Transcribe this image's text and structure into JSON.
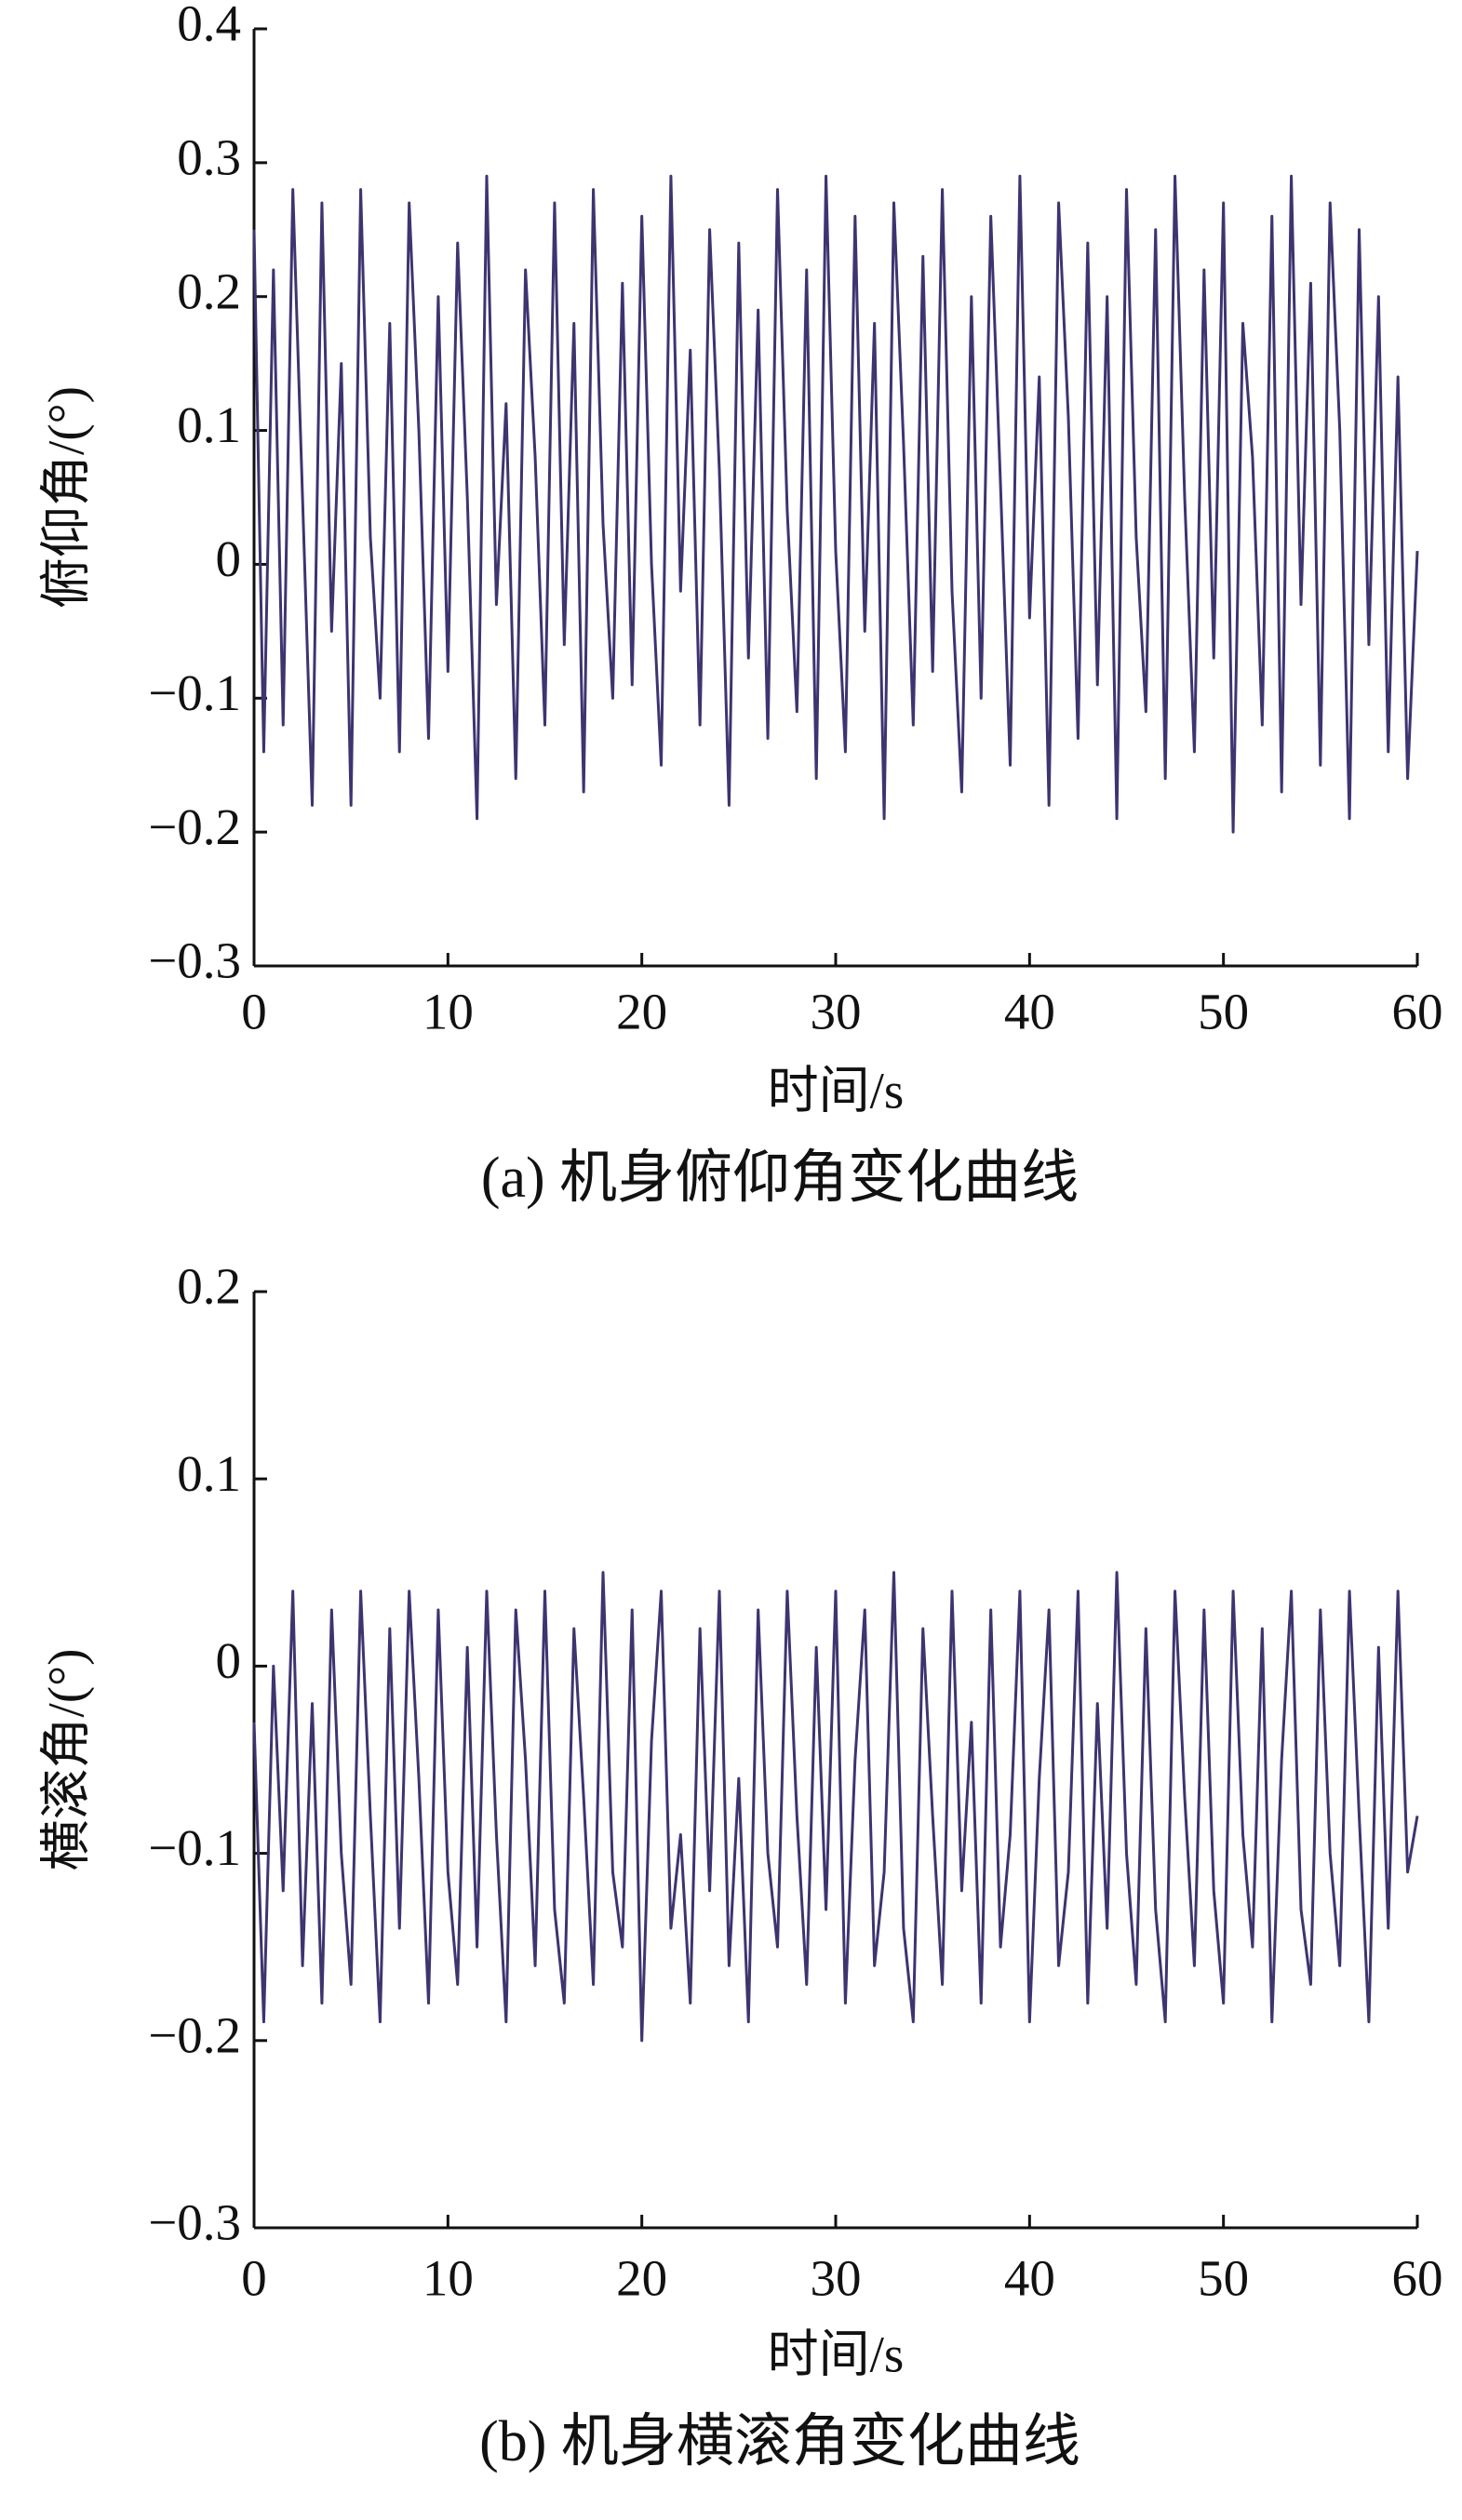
{
  "chart_data": [
    {
      "type": "line",
      "caption": "(a) 机身俯仰角变化曲线",
      "xlabel": "时间/s",
      "ylabel": "俯仰角/(°)",
      "xlim": [
        0,
        60
      ],
      "xticks": [
        0,
        10,
        20,
        30,
        40,
        50,
        60
      ],
      "ylim": [
        -0.3,
        0.4
      ],
      "yticks": [
        {
          "value": -0.3,
          "label": "−0.3"
        },
        {
          "value": -0.2,
          "label": "−0.2"
        },
        {
          "value": -0.1,
          "label": "−0.1"
        },
        0,
        0.1,
        0.2,
        0.3,
        0.4
      ],
      "x": [
        0,
        0.5,
        1,
        1.5,
        2,
        2.5,
        3,
        3.5,
        4,
        4.5,
        5,
        5.5,
        6,
        6.5,
        7,
        7.5,
        8,
        8.5,
        9,
        9.5,
        10,
        10.5,
        11,
        11.5,
        12,
        12.5,
        13,
        13.5,
        14,
        14.5,
        15,
        15.5,
        16,
        16.5,
        17,
        17.5,
        18,
        18.5,
        19,
        19.5,
        20,
        20.5,
        21,
        21.5,
        22,
        22.5,
        23,
        23.5,
        24,
        24.5,
        25,
        25.5,
        26,
        26.5,
        27,
        27.5,
        28,
        28.5,
        29,
        29.5,
        30,
        30.5,
        31,
        31.5,
        32,
        32.5,
        33,
        33.5,
        34,
        34.5,
        35,
        35.5,
        36,
        36.5,
        37,
        37.5,
        38,
        38.5,
        39,
        39.5,
        40,
        40.5,
        41,
        41.5,
        42,
        42.5,
        43,
        43.5,
        44,
        44.5,
        45,
        45.5,
        46,
        46.5,
        47,
        47.5,
        48,
        48.5,
        49,
        49.5,
        50,
        50.5,
        51,
        51.5,
        52,
        52.5,
        53,
        53.5,
        54,
        54.5,
        55,
        55.5,
        56,
        56.5,
        57,
        57.5,
        58,
        58.5,
        59,
        59.5,
        60
      ],
      "series": [
        {
          "color": "#3d3470",
          "values": [
            0.25,
            -0.14,
            0.22,
            -0.12,
            0.28,
            0.05,
            -0.18,
            0.27,
            -0.05,
            0.15,
            -0.18,
            0.28,
            0.02,
            -0.1,
            0.18,
            -0.14,
            0.27,
            0.1,
            -0.13,
            0.2,
            -0.08,
            0.24,
            0.05,
            -0.19,
            0.29,
            -0.03,
            0.12,
            -0.16,
            0.22,
            0.08,
            -0.12,
            0.27,
            -0.06,
            0.18,
            -0.17,
            0.28,
            0.03,
            -0.1,
            0.21,
            -0.09,
            0.26,
            0.0,
            -0.15,
            0.29,
            -0.02,
            0.16,
            -0.12,
            0.25,
            0.07,
            -0.18,
            0.24,
            -0.07,
            0.19,
            -0.13,
            0.28,
            0.04,
            -0.11,
            0.22,
            -0.16,
            0.29,
            0.01,
            -0.14,
            0.26,
            -0.05,
            0.18,
            -0.19,
            0.27,
            0.09,
            -0.12,
            0.23,
            -0.08,
            0.28,
            -0.02,
            -0.17,
            0.2,
            -0.1,
            0.26,
            0.06,
            -0.15,
            0.29,
            -0.04,
            0.14,
            -0.18,
            0.27,
            0.11,
            -0.13,
            0.24,
            -0.09,
            0.2,
            -0.19,
            0.28,
            0.02,
            -0.11,
            0.25,
            -0.16,
            0.29,
            0.05,
            -0.14,
            0.22,
            -0.07,
            0.27,
            -0.2,
            0.18,
            0.08,
            -0.12,
            0.26,
            -0.17,
            0.29,
            -0.03,
            0.21,
            -0.15,
            0.27,
            0.1,
            -0.19,
            0.25,
            -0.06,
            0.2,
            -0.14,
            0.14,
            -0.16,
            0.01
          ]
        }
      ]
    },
    {
      "type": "line",
      "caption": "(b) 机身横滚角变化曲线",
      "xlabel": "时间/s",
      "ylabel": "横滚角/(°)",
      "xlim": [
        0,
        60
      ],
      "xticks": [
        0,
        10,
        20,
        30,
        40,
        50,
        60
      ],
      "ylim": [
        -0.3,
        0.2
      ],
      "yticks": [
        {
          "value": -0.3,
          "label": "−0.3"
        },
        {
          "value": -0.2,
          "label": "−0.2"
        },
        {
          "value": -0.1,
          "label": "−0.1"
        },
        0,
        0.1,
        0.2
      ],
      "x": [
        0,
        0.5,
        1,
        1.5,
        2,
        2.5,
        3,
        3.5,
        4,
        4.5,
        5,
        5.5,
        6,
        6.5,
        7,
        7.5,
        8,
        8.5,
        9,
        9.5,
        10,
        10.5,
        11,
        11.5,
        12,
        12.5,
        13,
        13.5,
        14,
        14.5,
        15,
        15.5,
        16,
        16.5,
        17,
        17.5,
        18,
        18.5,
        19,
        19.5,
        20,
        20.5,
        21,
        21.5,
        22,
        22.5,
        23,
        23.5,
        24,
        24.5,
        25,
        25.5,
        26,
        26.5,
        27,
        27.5,
        28,
        28.5,
        29,
        29.5,
        30,
        30.5,
        31,
        31.5,
        32,
        32.5,
        33,
        33.5,
        34,
        34.5,
        35,
        35.5,
        36,
        36.5,
        37,
        37.5,
        38,
        38.5,
        39,
        39.5,
        40,
        40.5,
        41,
        41.5,
        42,
        42.5,
        43,
        43.5,
        44,
        44.5,
        45,
        45.5,
        46,
        46.5,
        47,
        47.5,
        48,
        48.5,
        49,
        49.5,
        50,
        50.5,
        51,
        51.5,
        52,
        52.5,
        53,
        53.5,
        54,
        54.5,
        55,
        55.5,
        56,
        56.5,
        57,
        57.5,
        58,
        58.5,
        59,
        59.5,
        60
      ],
      "series": [
        {
          "color": "#3d3470",
          "values": [
            -0.03,
            -0.19,
            0.0,
            -0.12,
            0.04,
            -0.16,
            -0.02,
            -0.18,
            0.03,
            -0.1,
            -0.17,
            0.04,
            -0.08,
            -0.19,
            0.02,
            -0.14,
            0.04,
            -0.06,
            -0.18,
            0.03,
            -0.11,
            -0.17,
            0.01,
            -0.15,
            0.04,
            -0.09,
            -0.19,
            0.03,
            -0.05,
            -0.16,
            0.04,
            -0.13,
            -0.18,
            0.02,
            -0.07,
            -0.17,
            0.05,
            -0.11,
            -0.15,
            0.03,
            -0.2,
            -0.04,
            0.04,
            -0.14,
            -0.09,
            -0.18,
            0.02,
            -0.12,
            0.04,
            -0.16,
            -0.06,
            -0.19,
            0.03,
            -0.1,
            -0.15,
            0.04,
            -0.08,
            -0.17,
            0.01,
            -0.13,
            0.04,
            -0.18,
            -0.05,
            0.03,
            -0.16,
            -0.11,
            0.05,
            -0.14,
            -0.19,
            0.02,
            -0.08,
            -0.17,
            0.04,
            -0.12,
            -0.03,
            -0.18,
            0.03,
            -0.15,
            -0.09,
            0.04,
            -0.19,
            -0.06,
            0.03,
            -0.16,
            -0.11,
            0.04,
            -0.18,
            -0.02,
            -0.14,
            0.05,
            -0.1,
            -0.17,
            0.02,
            -0.13,
            -0.19,
            0.04,
            -0.07,
            -0.16,
            0.03,
            -0.12,
            -0.18,
            0.04,
            -0.09,
            -0.15,
            0.02,
            -0.19,
            -0.05,
            0.04,
            -0.13,
            -0.17,
            0.03,
            -0.1,
            -0.16,
            0.04,
            -0.08,
            -0.19,
            0.01,
            -0.14,
            0.04,
            -0.11,
            -0.08
          ]
        }
      ]
    }
  ]
}
